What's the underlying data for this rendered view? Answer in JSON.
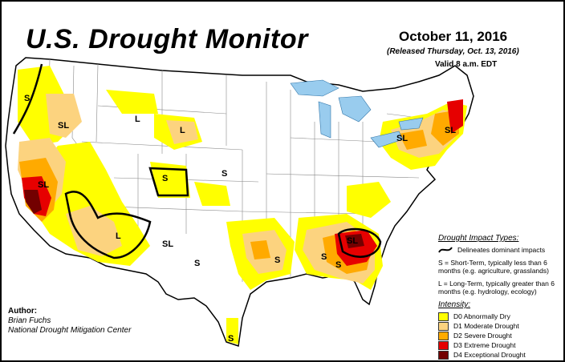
{
  "title": "U.S. Drought Monitor",
  "date": "October 11, 2016",
  "released": "(Released Thursday, Oct. 13, 2016)",
  "valid": "Valid 8 a.m. EDT",
  "map_labels": {
    "pnw_s": "S",
    "or_sl": "SL",
    "mt_l": "L",
    "nd_l": "L",
    "ca_sl": "SL",
    "co_s": "S",
    "ne_s": "S",
    "az_l": "L",
    "nm_sl": "SL",
    "nm_s": "S",
    "tx_s": "S",
    "al_s": "S",
    "ga_sl": "SL",
    "ga_s": "S",
    "ny_sl": "SL",
    "ne_sl": "SL",
    "tx_s2": "S"
  },
  "author": {
    "heading": "Author:",
    "name": "Brian Fuchs",
    "org": "National Drought Mitigation Center"
  },
  "legend": {
    "impact_header": "Drought Impact Types:",
    "delineates": "Delineates dominant impacts",
    "short_term": "S = Short-Term, typically less than 6 months (e.g. agriculture, grasslands)",
    "long_term": "L = Long-Term, typically greater than 6 months (e.g. hydrology, ecology)",
    "intensity_header": "Intensity:",
    "levels": [
      {
        "label": "D0 Abnormally Dry",
        "color": "#ffff00"
      },
      {
        "label": "D1 Moderate Drought",
        "color": "#fcd37f"
      },
      {
        "label": "D2 Severe Drought",
        "color": "#ffaa00"
      },
      {
        "label": "D3 Extreme Drought",
        "color": "#e60000"
      },
      {
        "label": "D4 Exceptional Drought",
        "color": "#730000"
      }
    ]
  },
  "colors": {
    "water": "#99ccee",
    "d0": "#ffff00",
    "d1": "#fcd37f",
    "d2": "#ffaa00",
    "d3": "#e60000",
    "d4": "#730000"
  }
}
